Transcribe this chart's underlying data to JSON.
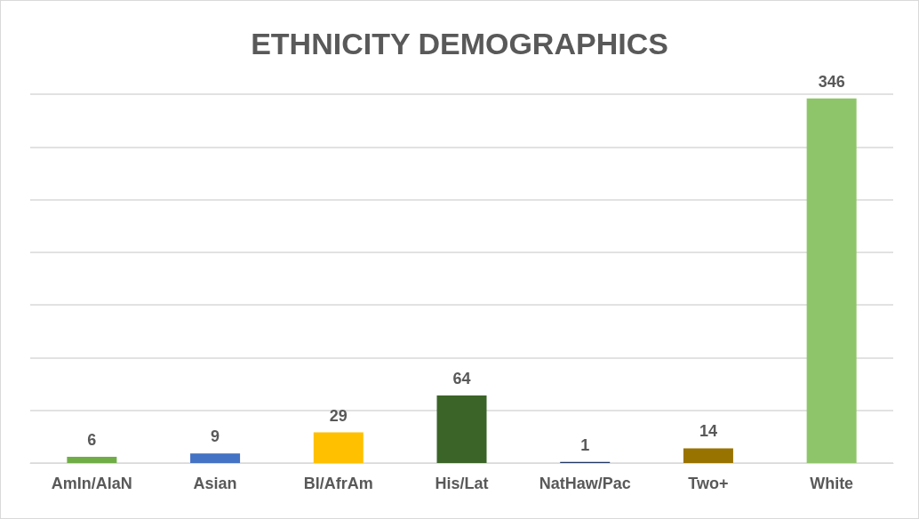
{
  "chart_data": {
    "type": "bar",
    "title": "ETHNICITY DEMOGRAPHICS",
    "categories": [
      "AmIn/AlaN",
      "Asian",
      "Bl/AfrAm",
      "His/Lat",
      "NatHaw/Pac",
      "Two+",
      "White"
    ],
    "values": [
      6,
      9,
      29,
      64,
      1,
      14,
      346
    ],
    "colors": [
      "#70ad47",
      "#4472c4",
      "#ffc000",
      "#3b6428",
      "#203864",
      "#997300",
      "#8fc56a"
    ],
    "tick_labels": "x",
    "grid": "y",
    "data_labels": true
  }
}
